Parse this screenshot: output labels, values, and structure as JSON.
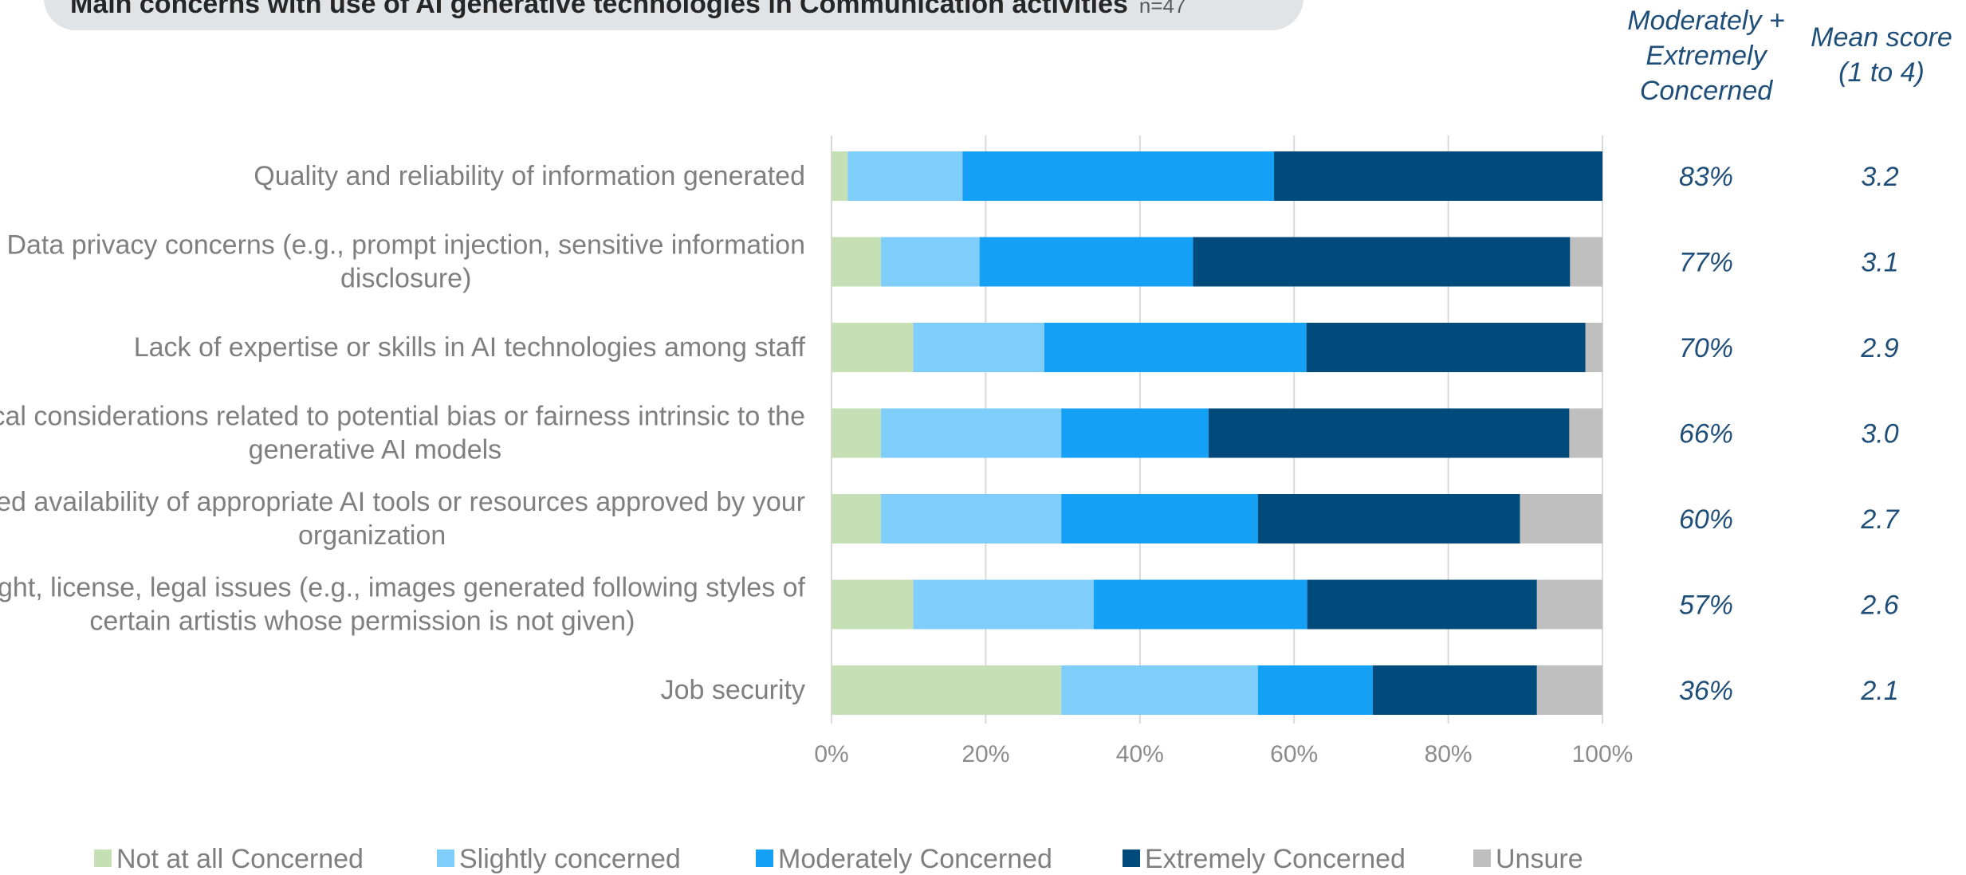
{
  "title": "Main concerns with use of AI generative technologies in Communication activities",
  "n_note": "n=47",
  "column_headers": {
    "concerned": [
      "Moderately +",
      "Extremely",
      "Concerned"
    ],
    "mean": [
      "Mean score",
      "(1 to 4)"
    ]
  },
  "colors": {
    "not_at_all": "#c5e0b4",
    "slightly": "#7fcdfb",
    "moderately": "#14a0f5",
    "extremely": "#004a7c",
    "unsure": "#bfbfbf"
  },
  "chart_data": {
    "type": "bar",
    "orientation": "horizontal",
    "stacked": true,
    "percent_stacked": true,
    "categories": [
      [
        "Quality and reliability of information generated"
      ],
      [
        "Data privacy concerns   (e.g., prompt injection, sensitive information",
        "disclosure)"
      ],
      [
        "Lack of expertise or skills in AI technologies among staff"
      ],
      [
        "Ethical considerations related to potential bias or fairness intrinsic to the",
        "generative AI models"
      ],
      [
        "Limited availability of appropriate AI tools or resources approved by your",
        "organization"
      ],
      [
        "Copyright, license, legal issues (e.g., images generated following styles of",
        "certain artistis whose permission is not given)"
      ],
      [
        "Job security"
      ]
    ],
    "series": [
      {
        "name": "Not at all Concerned",
        "color": "#c5e0b4",
        "values": [
          2.1,
          6.4,
          10.6,
          6.4,
          6.4,
          10.6,
          29.8
        ]
      },
      {
        "name": "Slightly concerned",
        "color": "#7fcdfb",
        "values": [
          14.9,
          12.8,
          17.0,
          23.4,
          23.4,
          23.4,
          25.5
        ]
      },
      {
        "name": "Moderately Concerned",
        "color": "#14a0f5",
        "values": [
          40.4,
          27.7,
          34.0,
          19.1,
          25.5,
          27.7,
          14.9
        ]
      },
      {
        "name": "Extremely Concerned",
        "color": "#004a7c",
        "values": [
          42.6,
          48.9,
          36.2,
          46.8,
          34.0,
          29.8,
          21.3
        ]
      },
      {
        "name": "Unsure",
        "color": "#bfbfbf",
        "values": [
          0.0,
          4.2,
          2.2,
          4.3,
          10.7,
          8.5,
          8.5
        ]
      }
    ],
    "xlim": [
      0,
      100
    ],
    "x_ticks": [
      "0%",
      "20%",
      "40%",
      "60%",
      "80%",
      "100%"
    ],
    "grid": "vertical",
    "legend": "bottom",
    "concerned_pct": [
      "83%",
      "77%",
      "70%",
      "66%",
      "60%",
      "57%",
      "36%"
    ],
    "mean_scores": [
      "3.2",
      "3.1",
      "2.9",
      "3.0",
      "2.7",
      "2.6",
      "2.1"
    ]
  }
}
